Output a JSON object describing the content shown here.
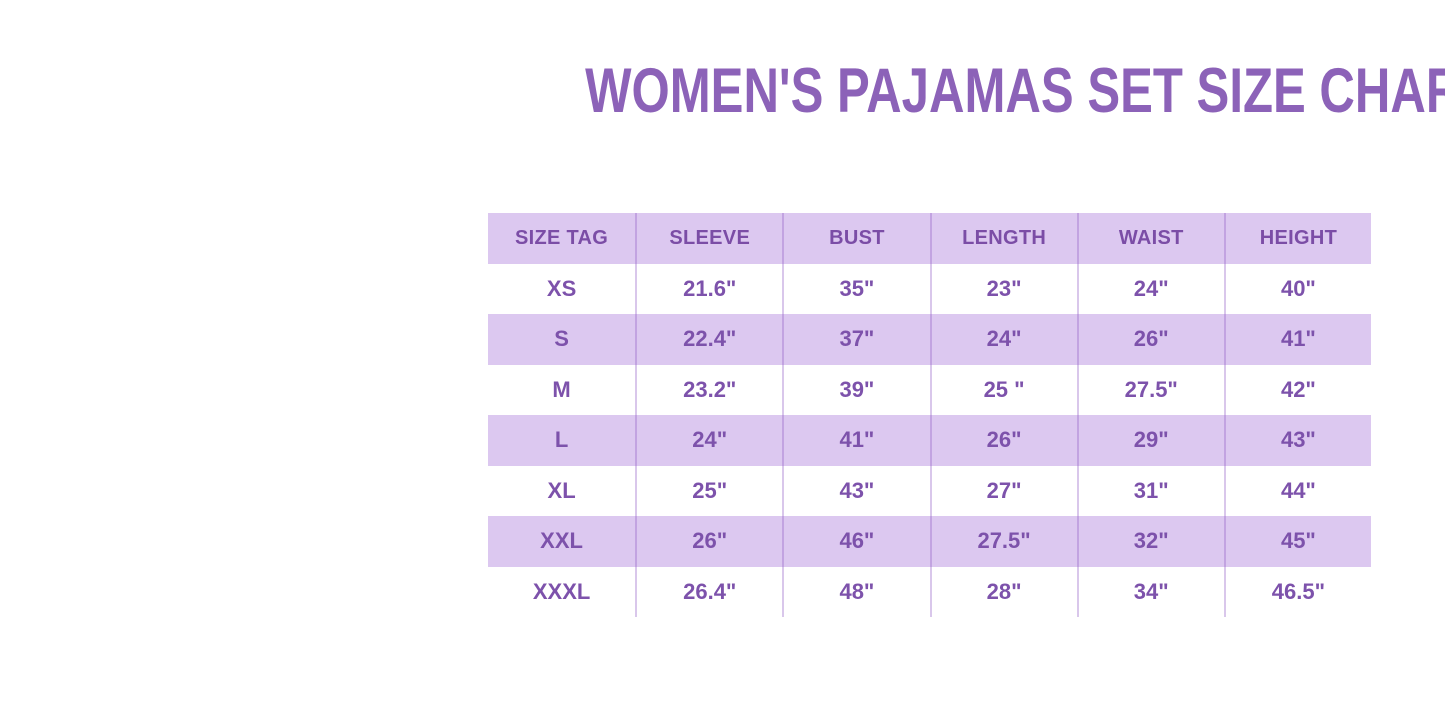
{
  "page": {
    "title": "WOMEN'S PAJAMAS SET SIZE CHART"
  },
  "colors": {
    "background": "#ffffff",
    "title_purple": "#8c62b8",
    "header_text_purple": "#7b4da6",
    "cell_text_purple": "#7d52ab",
    "row_lavender": "#dcc8f0",
    "column_divider_purple": "#a578d0"
  },
  "chart_data": {
    "type": "table",
    "title": "WOMEN'S PAJAMAS SET SIZE CHART",
    "columns": [
      "SIZE TAG",
      "SLEEVE",
      "BUST",
      "LENGTH",
      "WAIST",
      "HEIGHT"
    ],
    "rows": [
      [
        "XS",
        "21.6\"",
        "35\"",
        "23\"",
        "24\"",
        "40\""
      ],
      [
        "S",
        "22.4\"",
        "37\"",
        "24\"",
        "26\"",
        "41\""
      ],
      [
        "M",
        "23.2\"",
        "39\"",
        "25 \"",
        "27.5\"",
        "42\""
      ],
      [
        "L",
        "24\"",
        "41\"",
        "26\"",
        "29\"",
        "43\""
      ],
      [
        "XL",
        "25\"",
        "43\"",
        "27\"",
        "31\"",
        "44\""
      ],
      [
        "XXL",
        "26\"",
        "46\"",
        "27.5\"",
        "32\"",
        "45\""
      ],
      [
        "XXXL",
        "26.4\"",
        "48\"",
        "28\"",
        "34\"",
        "46.5\""
      ]
    ],
    "layout": {
      "legend_position": "none",
      "grid": "vertical column dividers only; no horizontal rules",
      "row_shading": "header lavender, then alternating white / lavender (S, L, XXL lavender)"
    }
  }
}
